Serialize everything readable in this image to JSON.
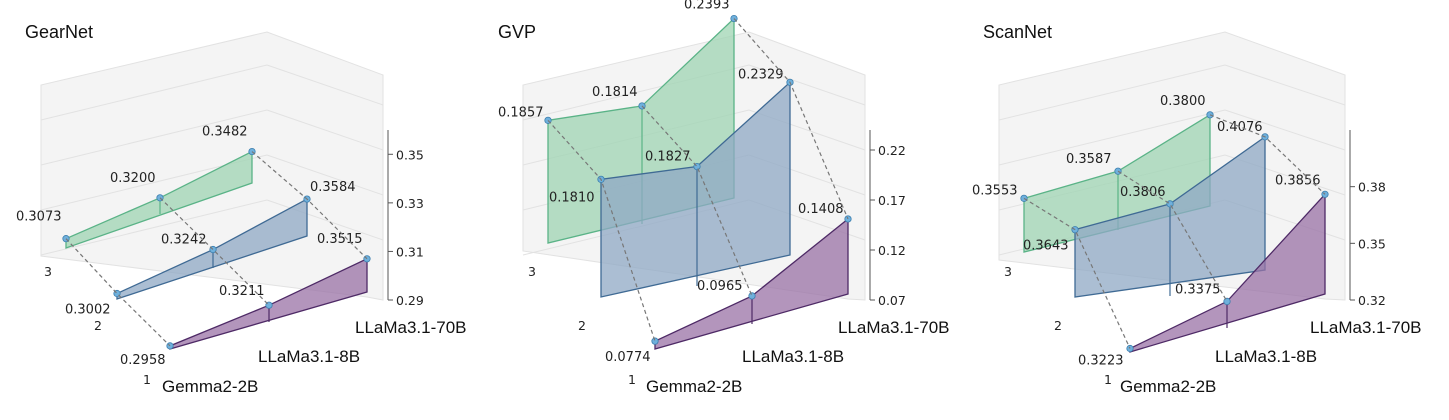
{
  "chart_data": [
    {
      "type": "area",
      "title": "GearNet",
      "categories": [
        "Gemma2-2B",
        "LLaMa3.1-8B",
        "LLaMa3.1-70B"
      ],
      "x_ticks": [
        "1",
        "2",
        "3"
      ],
      "z_ticks": [
        "0.29",
        "0.31",
        "0.33",
        "0.35"
      ],
      "zlim": [
        0.29,
        0.36
      ],
      "series": [
        {
          "category": "LLaMa3.1-70B",
          "values": [
            0.3073,
            0.32,
            0.3482
          ]
        },
        {
          "category": "LLaMa3.1-8B",
          "values": [
            0.3002,
            0.3242,
            0.3584
          ]
        },
        {
          "category": "Gemma2-2B",
          "values": [
            0.2958,
            0.3211,
            0.3515
          ]
        }
      ]
    },
    {
      "type": "area",
      "title": "GVP",
      "categories": [
        "Gemma2-2B",
        "LLaMa3.1-8B",
        "LLaMa3.1-70B"
      ],
      "x_ticks": [
        "1",
        "2",
        "3"
      ],
      "z_ticks": [
        "0.07",
        "0.12",
        "0.17",
        "0.22"
      ],
      "zlim": [
        0.07,
        0.24
      ],
      "series": [
        {
          "category": "LLaMa3.1-70B",
          "values": [
            0.1857,
            0.1814,
            0.2393
          ]
        },
        {
          "category": "LLaMa3.1-8B",
          "values": [
            0.181,
            0.1827,
            0.2329
          ]
        },
        {
          "category": "Gemma2-2B",
          "values": [
            0.0774,
            0.0965,
            0.1408
          ]
        }
      ]
    },
    {
      "type": "area",
      "title": "ScanNet",
      "categories": [
        "Gemma2-2B",
        "LLaMa3.1-8B",
        "LLaMa3.1-70B"
      ],
      "x_ticks": [
        "1",
        "2",
        "3"
      ],
      "z_ticks": [
        "0.32",
        "0.35",
        "0.38"
      ],
      "zlim": [
        0.32,
        0.41
      ],
      "series": [
        {
          "category": "LLaMa3.1-70B",
          "values": [
            0.3553,
            0.3587,
            0.38
          ]
        },
        {
          "category": "LLaMa3.1-8B",
          "values": [
            0.3643,
            0.3806,
            0.4076
          ]
        },
        {
          "category": "Gemma2-2B",
          "values": [
            0.3223,
            0.3375,
            0.3856
          ]
        }
      ]
    }
  ],
  "colors": {
    "LLaMa3.1-70B": {
      "fill": "#9fd4b3",
      "line": "#5ab387"
    },
    "LLaMa3.1-8B": {
      "fill": "#8fa8c4",
      "line": "#3f6a94"
    },
    "Gemma2-2B": {
      "fill": "#9a72a6",
      "line": "#4e2a66"
    },
    "marker": "#6fb0dc",
    "grid": "#e2e2e2",
    "axis": "#555555",
    "dash": "#777777"
  }
}
